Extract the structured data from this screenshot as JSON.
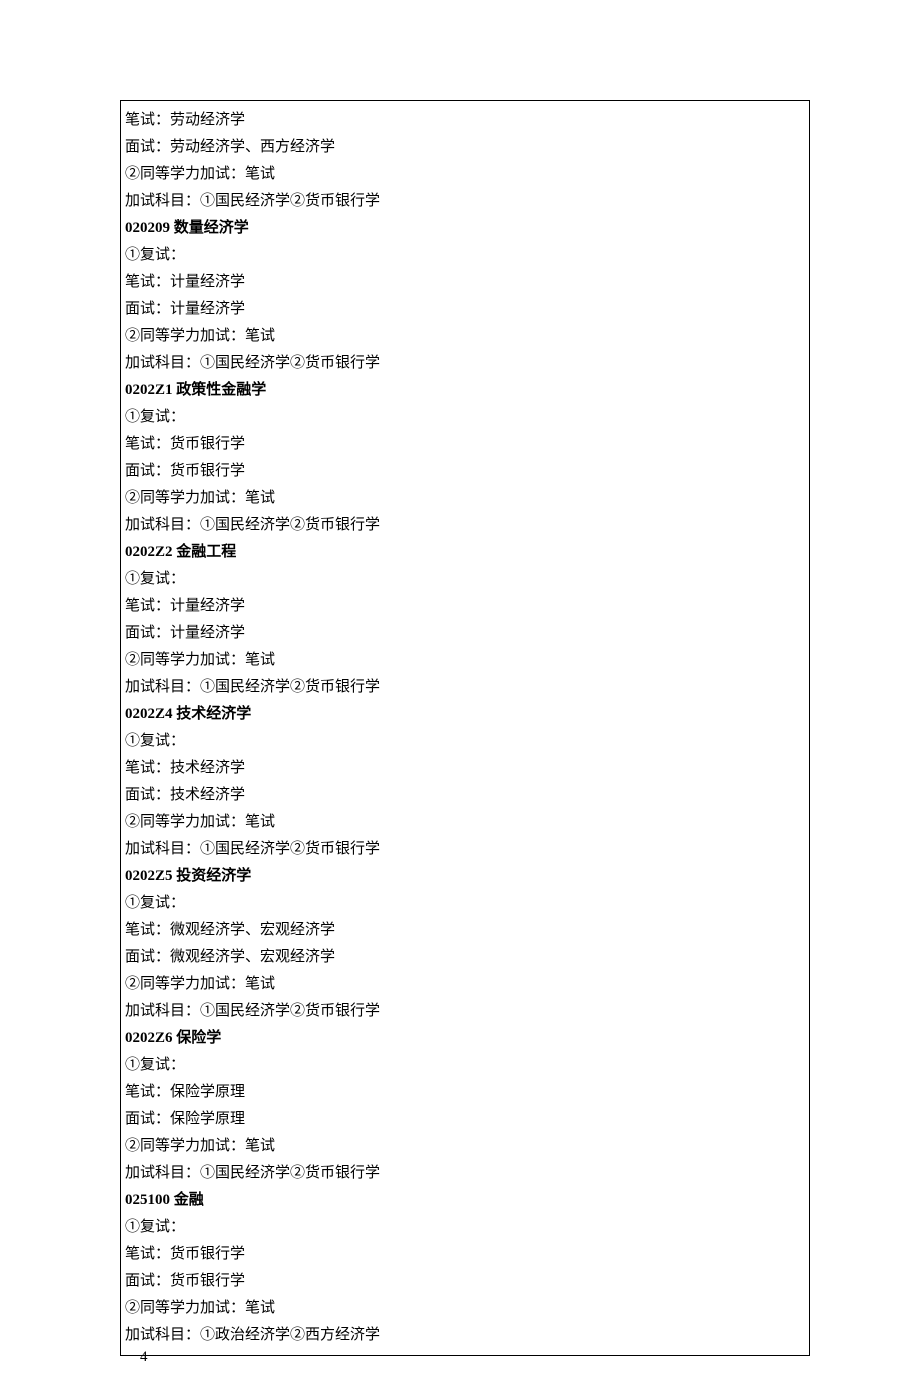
{
  "sections": [
    {
      "header": null,
      "lines": [
        "笔试：劳动经济学",
        "面试：劳动经济学、西方经济学",
        "②同等学力加试：笔试",
        "加试科目：①国民经济学②货币银行学"
      ]
    },
    {
      "header": "020209 数量经济学",
      "lines": [
        "①复试：",
        "笔试：计量经济学",
        "面试：计量经济学",
        "②同等学力加试：笔试",
        "加试科目：①国民经济学②货币银行学"
      ]
    },
    {
      "header": "0202Z1 政策性金融学",
      "lines": [
        "①复试：",
        "笔试：货币银行学",
        "面试：货币银行学",
        "②同等学力加试：笔试",
        "加试科目：①国民经济学②货币银行学"
      ]
    },
    {
      "header": "0202Z2 金融工程",
      "lines": [
        "①复试：",
        "笔试：计量经济学",
        "面试：计量经济学",
        "②同等学力加试：笔试",
        "加试科目：①国民经济学②货币银行学"
      ]
    },
    {
      "header": "0202Z4 技术经济学",
      "lines": [
        "①复试：",
        "笔试：技术经济学",
        "面试：技术经济学",
        "②同等学力加试：笔试",
        "加试科目：①国民经济学②货币银行学"
      ]
    },
    {
      "header": "0202Z5 投资经济学",
      "lines": [
        "①复试：",
        "笔试：微观经济学、宏观经济学",
        "面试：微观经济学、宏观经济学",
        "②同等学力加试：笔试",
        "加试科目：①国民经济学②货币银行学"
      ]
    },
    {
      "header": "0202Z6 保险学",
      "lines": [
        "①复试：",
        "笔试：保险学原理",
        "面试：保险学原理",
        "②同等学力加试：笔试",
        "加试科目：①国民经济学②货币银行学"
      ]
    },
    {
      "header": "025100 金融",
      "lines": [
        "①复试：",
        "笔试：货币银行学",
        "面试：货币银行学",
        "②同等学力加试：笔试",
        "加试科目：①政治经济学②西方经济学"
      ]
    }
  ],
  "page_number": "4"
}
